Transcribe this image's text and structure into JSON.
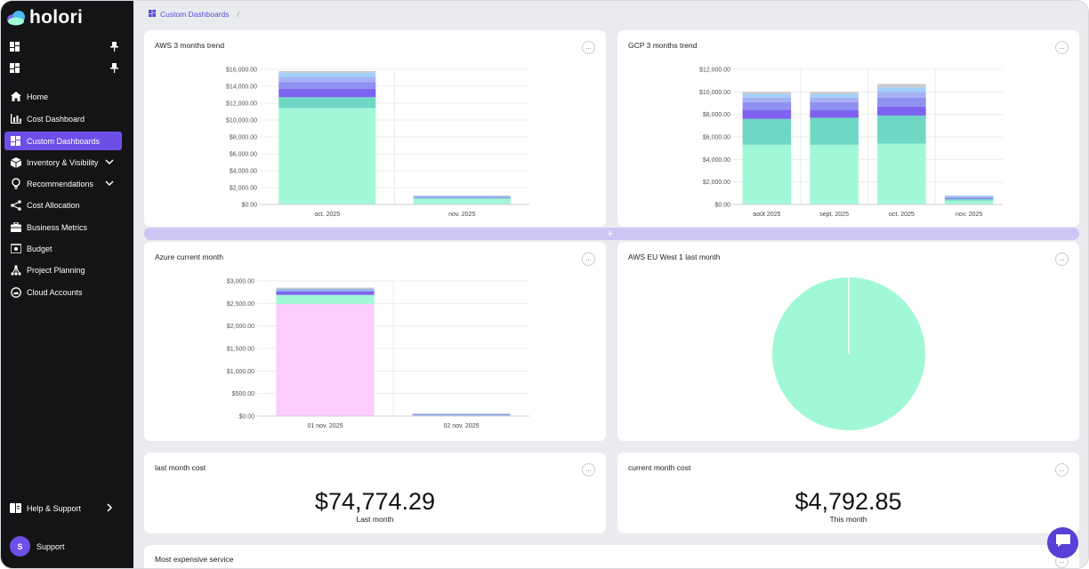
{
  "app": {
    "logo_text": "holori"
  },
  "sidebar": {
    "items": [
      {
        "label": "Home",
        "icon": "home-icon"
      },
      {
        "label": "Cost Dashboard",
        "icon": "bar-chart-icon"
      },
      {
        "label": "Custom Dashboards",
        "icon": "dashboard-icon",
        "active": true
      },
      {
        "label": "Inventory & Visibility",
        "icon": "cube-icon",
        "chevron": true
      },
      {
        "label": "Recommendations",
        "icon": "lightbulb-icon",
        "chevron": true
      },
      {
        "label": "Cost Allocation",
        "icon": "share-icon"
      },
      {
        "label": "Business Metrics",
        "icon": "briefcase-icon"
      },
      {
        "label": "Budget",
        "icon": "wallet-icon"
      },
      {
        "label": "Project Planning",
        "icon": "hierarchy-icon"
      },
      {
        "label": "Cloud Accounts",
        "icon": "cloud-account-icon"
      }
    ],
    "help": {
      "label": "Help & Support"
    },
    "user": {
      "initial": "S",
      "label": "Support"
    }
  },
  "breadcrumb": {
    "current": "Custom Dashboards",
    "separator": "/"
  },
  "cards": {
    "aws_trend": {
      "title": "AWS 3 months trend",
      "menu": "..."
    },
    "gcp_trend": {
      "title": "GCP 3 months trend",
      "menu": "..."
    },
    "azure_current": {
      "title": "Azure current month",
      "menu": "..."
    },
    "aws_eu_west": {
      "title": "AWS EU West 1 last month",
      "menu": "..."
    },
    "last_month": {
      "title": "last month cost",
      "value": "$74,774.29",
      "sub": "Last month",
      "menu": "..."
    },
    "current_month": {
      "title": "current month cost",
      "value": "$4,792.85",
      "sub": "This month",
      "menu": "..."
    },
    "most_expensive": {
      "title": "Most expensive service",
      "menu": "..."
    }
  },
  "colors": {
    "accent": "#6d4fe8",
    "mint": "#a1f8d6",
    "teal": "#6fd8c5",
    "violet": "#7e63f0",
    "periwinkle": "#8f90f0",
    "lavender": "#a6b2f4",
    "sky": "#9fd0fb",
    "grey": "#c9c9cf",
    "pink": "#fdcdfb",
    "blue": "#8fb6f2"
  },
  "chart_data": [
    {
      "type": "bar",
      "stacked": true,
      "categories": [
        "oct. 2025",
        "nov. 2025"
      ],
      "yticks": [
        "$0.00",
        "$2,000.00",
        "$4,000.00",
        "$6,000.00",
        "$8,000.00",
        "$10,000.00",
        "$12,000.00",
        "$14,000.00",
        "$16,000.00"
      ],
      "ylim": [
        0,
        16000
      ],
      "series": [
        {
          "color": "#a1f8d6",
          "values": [
            11400,
            700
          ]
        },
        {
          "color": "#6fd8c5",
          "values": [
            1300,
            80
          ]
        },
        {
          "color": "#7e63f0",
          "values": [
            1000,
            60
          ]
        },
        {
          "color": "#8f90f0",
          "values": [
            800,
            40
          ]
        },
        {
          "color": "#a6b2f4",
          "values": [
            600,
            60
          ]
        },
        {
          "color": "#9fd0fb",
          "values": [
            500,
            110
          ]
        },
        {
          "color": "#c9c9cf",
          "values": [
            200,
            20
          ]
        }
      ]
    },
    {
      "type": "bar",
      "stacked": true,
      "categories": [
        "août 2025",
        "sept. 2025",
        "oct. 2025",
        "nov. 2025"
      ],
      "yticks": [
        "$0.00",
        "$2,000.00",
        "$4,000.00",
        "$6,000.00",
        "$8,000.00",
        "$10,000.00",
        "$12,000.00"
      ],
      "ylim": [
        0,
        12000
      ],
      "series": [
        {
          "color": "#a1f8d6",
          "values": [
            5300,
            5300,
            5400,
            350
          ]
        },
        {
          "color": "#6fd8c5",
          "values": [
            2300,
            2400,
            2500,
            150
          ]
        },
        {
          "color": "#7e63f0",
          "values": [
            800,
            700,
            800,
            70
          ]
        },
        {
          "color": "#8f90f0",
          "values": [
            700,
            700,
            800,
            60
          ]
        },
        {
          "color": "#a6b2f4",
          "values": [
            400,
            400,
            500,
            40
          ]
        },
        {
          "color": "#9fd0fb",
          "values": [
            300,
            300,
            400,
            90
          ]
        },
        {
          "color": "#c9c9cf",
          "values": [
            200,
            200,
            300,
            40
          ]
        }
      ]
    },
    {
      "type": "bar",
      "stacked": true,
      "categories": [
        "01 nov. 2025",
        "02 nov. 2025"
      ],
      "yticks": [
        "$0.00",
        "$500.00",
        "$1,000.00",
        "$1,500.00",
        "$2,000.00",
        "$2,500.00",
        "$3,000.00"
      ],
      "ylim": [
        0,
        3000
      ],
      "series": [
        {
          "color": "#fdcdfb",
          "values": [
            2490,
            0
          ]
        },
        {
          "color": "#a1f8d6",
          "values": [
            200,
            20
          ]
        },
        {
          "color": "#7e63f0",
          "values": [
            80,
            10
          ]
        },
        {
          "color": "#8fb6f2",
          "values": [
            50,
            20
          ]
        },
        {
          "color": "#c9c9cf",
          "values": [
            30,
            5
          ]
        }
      ]
    },
    {
      "type": "pie",
      "slices": [
        {
          "color": "#a1f8d6",
          "value": 99.9
        },
        {
          "color": "#ffffff",
          "value": 0.1
        }
      ]
    }
  ]
}
